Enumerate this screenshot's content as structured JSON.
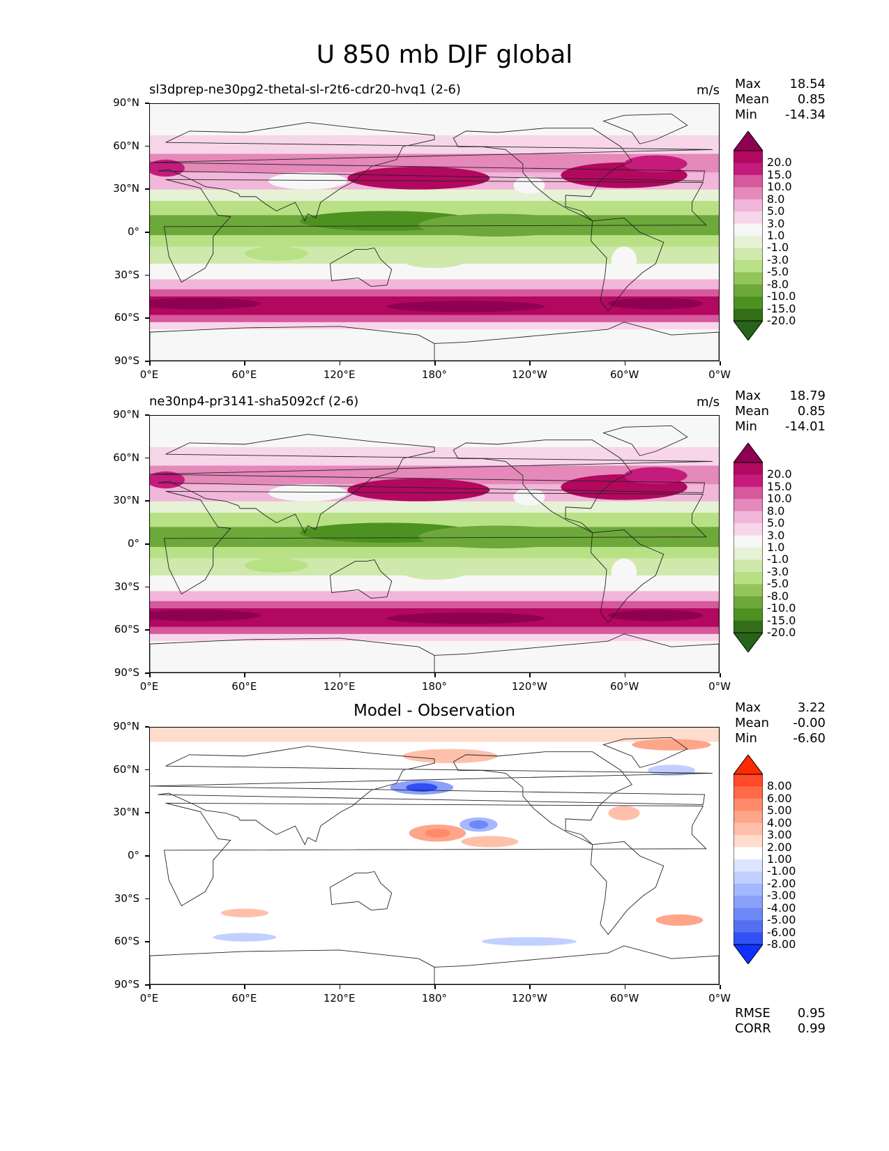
{
  "figure_title": "U 850 mb DJF global",
  "axes": {
    "lat_ticks": [
      "90°N",
      "60°N",
      "30°N",
      "0°",
      "30°S",
      "60°S",
      "90°S"
    ],
    "lon_ticks": [
      "0°E",
      "60°E",
      "120°E",
      "180°",
      "120°W",
      "60°W",
      "0°W"
    ]
  },
  "panels": [
    {
      "title": "sl3dprep-ne30pg2-thetal-sl-r2t6-cdr20-hvq1 (2-6)",
      "units": "m/s",
      "stats": {
        "max_label": "Max",
        "max": "18.54",
        "mean_label": "Mean",
        "mean": "0.85",
        "min_label": "Min",
        "min": "-14.34"
      },
      "colorbar": {
        "labels": [
          "20.0",
          "15.0",
          "10.0",
          "8.0",
          "5.0",
          "3.0",
          "1.0",
          "-1.0",
          "-3.0",
          "-5.0",
          "-8.0",
          "-10.0",
          "-15.0",
          "-20.0"
        ],
        "colors": [
          "#8e0152",
          "#b2085f",
          "#c51b7d",
          "#d6589d",
          "#e588ba",
          "#f1b6da",
          "#f7d6ea",
          "#f7f7f7",
          "#e6f2d5",
          "#cfe9ac",
          "#b8e186",
          "#93c55b",
          "#6da83a",
          "#4d9221",
          "#346d18",
          "#276419"
        ]
      }
    },
    {
      "title": "ne30np4-pr3141-sha5092cf (2-6)",
      "units": "m/s",
      "stats": {
        "max_label": "Max",
        "max": "18.79",
        "mean_label": "Mean",
        "mean": "0.85",
        "min_label": "Min",
        "min": "-14.01"
      },
      "colorbar": {
        "labels": [
          "20.0",
          "15.0",
          "10.0",
          "8.0",
          "5.0",
          "3.0",
          "1.0",
          "-1.0",
          "-3.0",
          "-5.0",
          "-8.0",
          "-10.0",
          "-15.0",
          "-20.0"
        ],
        "colors": [
          "#8e0152",
          "#b2085f",
          "#c51b7d",
          "#d6589d",
          "#e588ba",
          "#f1b6da",
          "#f7d6ea",
          "#f7f7f7",
          "#e6f2d5",
          "#cfe9ac",
          "#b8e186",
          "#93c55b",
          "#6da83a",
          "#4d9221",
          "#346d18",
          "#276419"
        ]
      }
    },
    {
      "title": "Model - Observation",
      "units": "",
      "stats": {
        "max_label": "Max",
        "max": "3.22",
        "mean_label": "Mean",
        "mean": "-0.00",
        "min_label": "Min",
        "min": "-6.60"
      },
      "colorbar": {
        "labels": [
          "8.00",
          "6.00",
          "5.00",
          "4.00",
          "3.00",
          "2.00",
          "1.00",
          "-1.00",
          "-2.00",
          "-3.00",
          "-4.00",
          "-5.00",
          "-6.00",
          "-8.00"
        ],
        "colors": [
          "#ff2a00",
          "#ff4a2a",
          "#ff6a4a",
          "#ff8a6a",
          "#ffa58a",
          "#ffc0aa",
          "#ffdccc",
          "#ffffff",
          "#dde6ff",
          "#c2d0ff",
          "#a3b8ff",
          "#8aa0fa",
          "#6e88f5",
          "#5470f0",
          "#3050f5",
          "#1030ff"
        ]
      },
      "metrics": {
        "rmse_label": "RMSE",
        "rmse": "0.95",
        "corr_label": "CORR",
        "corr": "0.99"
      }
    }
  ]
}
